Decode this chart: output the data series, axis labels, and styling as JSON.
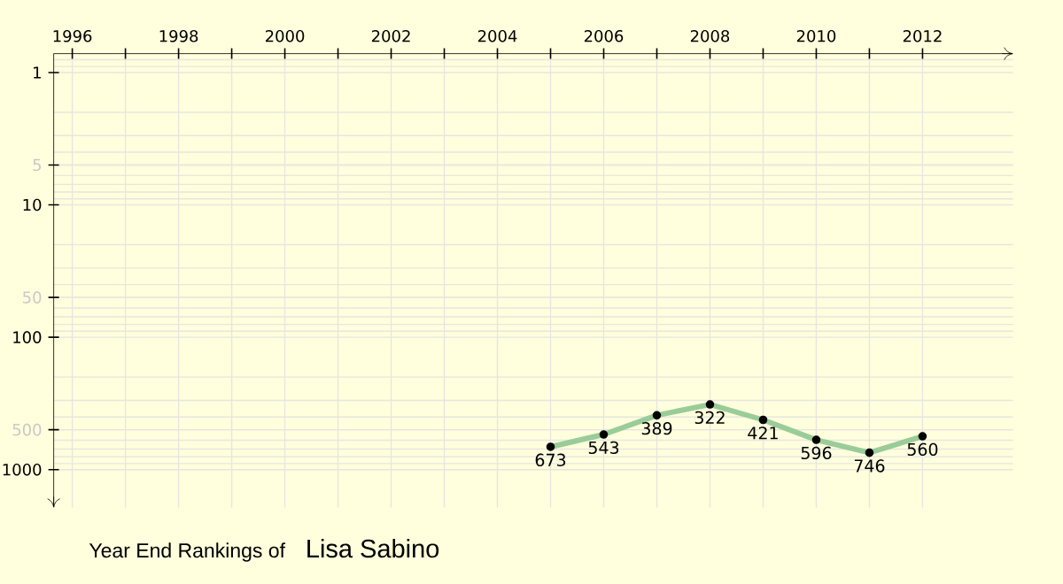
{
  "chart_data": {
    "type": "line",
    "title": "Year End Rankings of",
    "subtitle": "Lisa Sabino",
    "x": [
      2005,
      2006,
      2007,
      2008,
      2009,
      2010,
      2011,
      2012
    ],
    "series": [
      {
        "color": "#99cc99",
        "values": [
          673,
          543,
          389,
          322,
          421,
          596,
          746,
          560
        ]
      }
    ],
    "xlim": [
      1995.65,
      2013.7
    ],
    "xticks": [
      1996,
      {
        "value": 1997,
        "label": null
      },
      1998,
      {
        "value": 1999,
        "label": null
      },
      2000,
      {
        "value": 2001,
        "label": null
      },
      2002,
      {
        "value": 2003,
        "label": null
      },
      2004,
      {
        "value": 2005,
        "label": null
      },
      2006,
      {
        "value": 2007,
        "label": null
      },
      2008,
      {
        "value": 2009,
        "label": null
      },
      2010,
      {
        "value": 2011,
        "label": null
      },
      2012
    ],
    "ylim": [
      1930,
      0.72
    ],
    "yticks": [
      1,
      5,
      10,
      50,
      100,
      500,
      1000
    ],
    "log": "y",
    "grid": true,
    "marker": "circle",
    "line_style": "solid",
    "data_labels": true
  }
}
